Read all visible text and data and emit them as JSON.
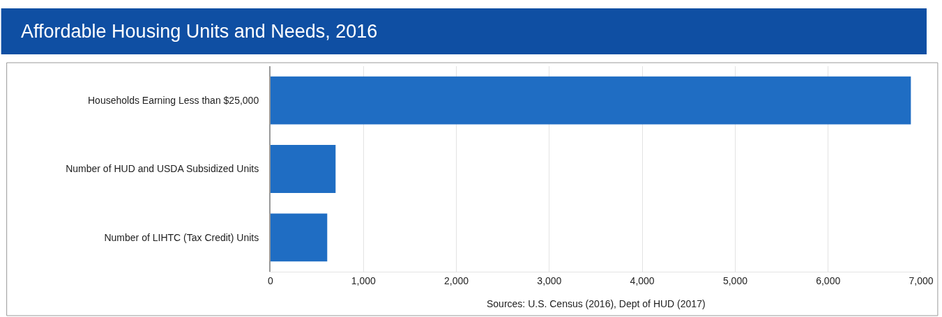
{
  "chart_data": {
    "type": "bar",
    "orientation": "horizontal",
    "title": "Affordable Housing Units and Needs, 2016",
    "categories": [
      "Households Earning Less than $25,000",
      "Number of HUD and USDA Subsidized Units",
      "Number of LIHTC (Tax Credit) Units"
    ],
    "values": [
      6890,
      700,
      610
    ],
    "color": "#1f6dc3",
    "xlim": [
      0,
      7000
    ],
    "xticks": [
      {
        "value": 0,
        "label": "0"
      },
      {
        "value": 1000,
        "label": "1,000"
      },
      {
        "value": 2000,
        "label": "2,000"
      },
      {
        "value": 3000,
        "label": "3,000"
      },
      {
        "value": 4000,
        "label": "4,000"
      },
      {
        "value": 5000,
        "label": "5,000"
      },
      {
        "value": 6000,
        "label": "6,000"
      },
      {
        "value": 7000,
        "label": "7,000"
      }
    ],
    "grid": "x",
    "annotations": [
      "Sources: U.S. Census (2016), Dept of HUD (2017)"
    ]
  }
}
